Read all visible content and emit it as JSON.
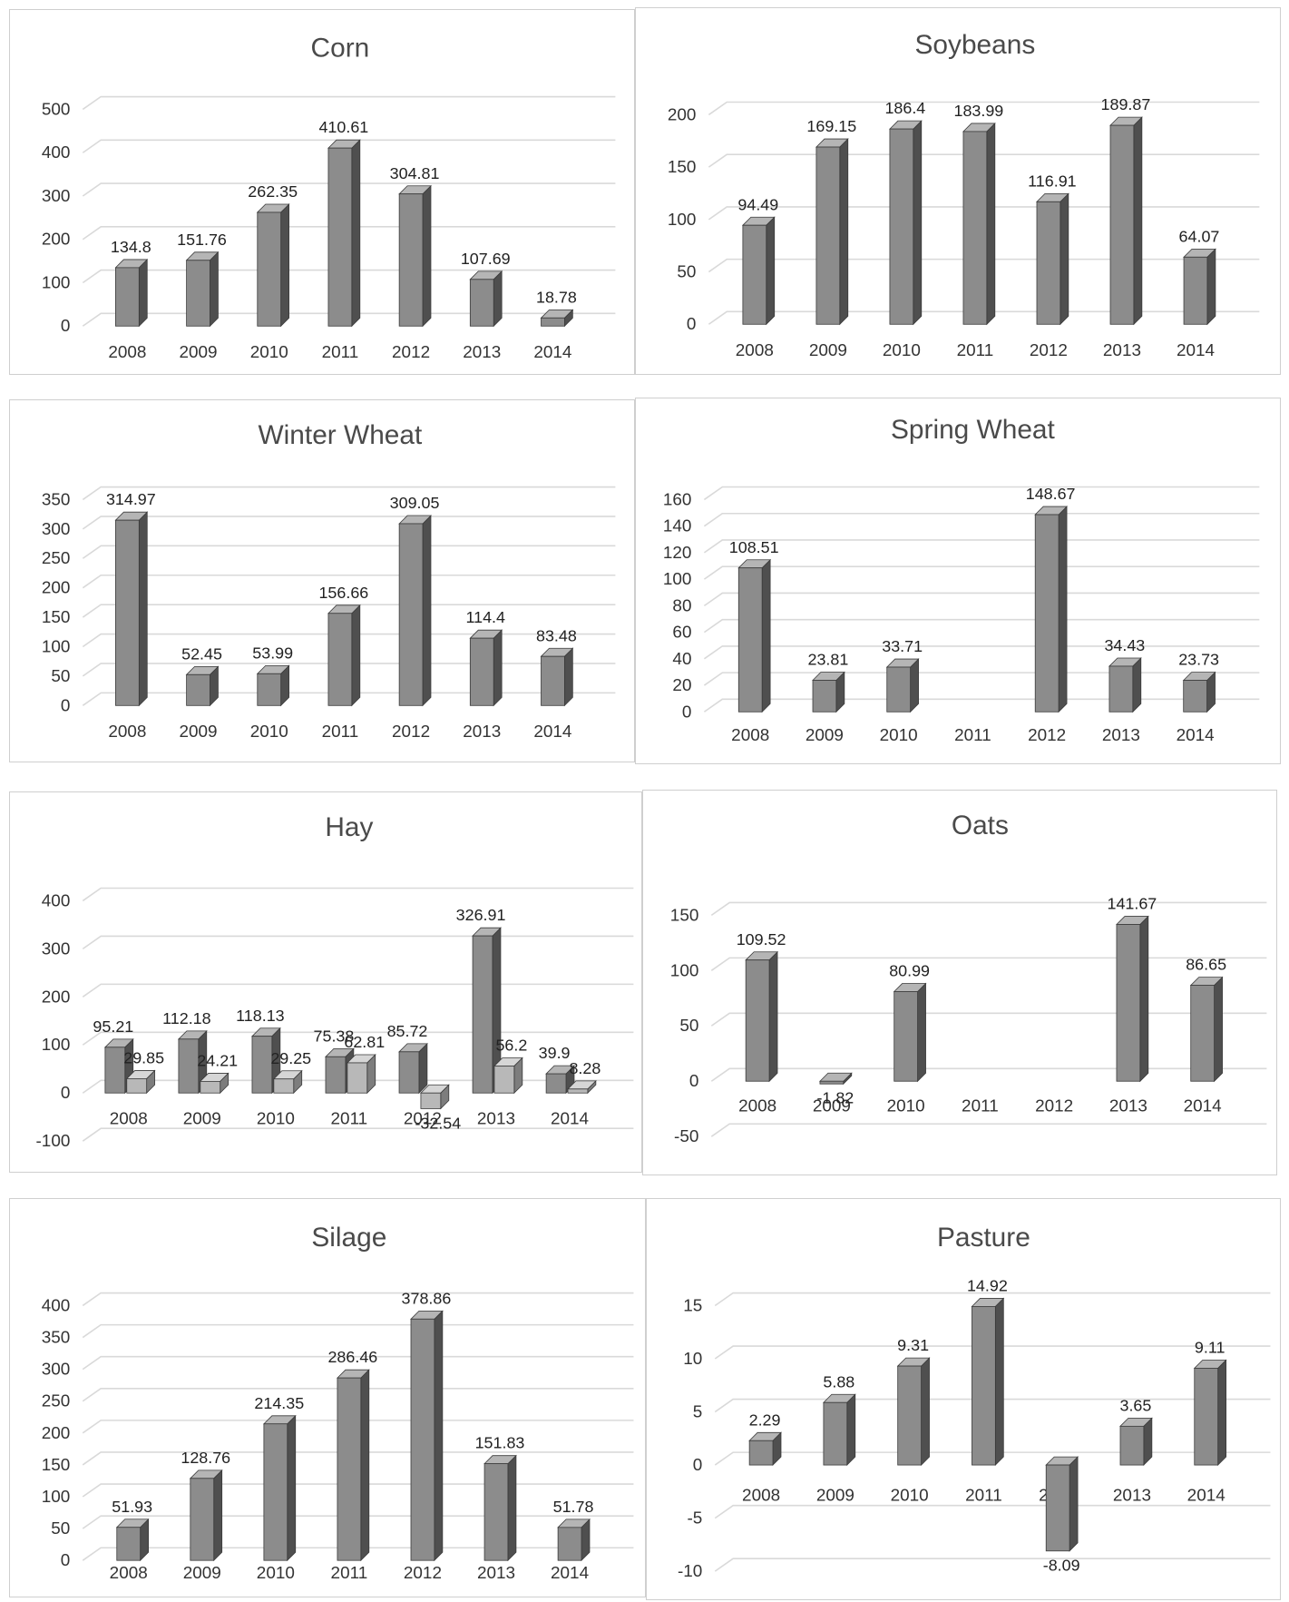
{
  "colors": {
    "bar_front": "#8c8c8c",
    "bar_side": "#4f4f4f",
    "bar_top": "#b5b5b5",
    "bar2_front": "#b8b8b8",
    "bar2_side": "#7d7d7d",
    "bar2_top": "#d6d6d6",
    "grid": "#d9d9d9",
    "text": "#333333"
  },
  "chart_data": [
    {
      "type": "bar",
      "title": "Corn",
      "categories": [
        "2008",
        "2009",
        "2010",
        "2011",
        "2012",
        "2013",
        "2014"
      ],
      "series": [
        {
          "values": [
            134.8,
            151.76,
            262.35,
            410.61,
            304.81,
            107.69,
            18.78
          ],
          "labels": [
            "134.8",
            "151.76",
            "262.35",
            "410.61",
            "304.81",
            "107.69",
            "18.78"
          ]
        }
      ],
      "yticks": [
        "0",
        "100",
        "200",
        "300",
        "400",
        "500"
      ],
      "ylim": [
        0,
        500
      ],
      "grid": true
    },
    {
      "type": "bar",
      "title": "Soybeans",
      "categories": [
        "2008",
        "2009",
        "2010",
        "2011",
        "2012",
        "2013",
        "2014"
      ],
      "series": [
        {
          "values": [
            94.49,
            169.15,
            186.4,
            183.99,
            116.91,
            189.87,
            64.07
          ],
          "labels": [
            "94.49",
            "169.15",
            "186.4",
            "183.99",
            "116.91",
            "189.87",
            "64.07"
          ]
        }
      ],
      "yticks": [
        "0",
        "50",
        "100",
        "150",
        "200"
      ],
      "ylim": [
        0,
        200
      ],
      "grid": true
    },
    {
      "type": "bar",
      "title": "Winter Wheat",
      "categories": [
        "2008",
        "2009",
        "2010",
        "2011",
        "2012",
        "2013",
        "2014"
      ],
      "series": [
        {
          "values": [
            314.97,
            52.45,
            53.99,
            156.66,
            309.05,
            114.4,
            83.48
          ],
          "labels": [
            "314.97",
            "52.45",
            "53.99",
            "156.66",
            "309.05",
            "114.4",
            "83.48"
          ]
        }
      ],
      "yticks": [
        "0",
        "50",
        "100",
        "150",
        "200",
        "250",
        "300",
        "350"
      ],
      "ylim": [
        0,
        350
      ],
      "grid": true
    },
    {
      "type": "bar",
      "title": "Spring Wheat",
      "categories": [
        "2008",
        "2009",
        "2010",
        "2011",
        "2012",
        "2013",
        "2014"
      ],
      "series": [
        {
          "values": [
            108.51,
            23.81,
            33.71,
            null,
            148.67,
            34.43,
            23.73
          ],
          "labels": [
            "108.51",
            "23.81",
            "33.71",
            "",
            "148.67",
            "34.43",
            "23.73"
          ]
        }
      ],
      "yticks": [
        "0",
        "20",
        "40",
        "60",
        "80",
        "100",
        "120",
        "140",
        "160"
      ],
      "ylim": [
        0,
        160
      ],
      "grid": true
    },
    {
      "type": "bar",
      "title": "Hay",
      "categories": [
        "2008",
        "2009",
        "2010",
        "2011",
        "2012",
        "2013",
        "2014"
      ],
      "series": [
        {
          "values": [
            95.21,
            112.18,
            118.13,
            75.38,
            85.72,
            326.91,
            39.9
          ],
          "labels": [
            "95.21",
            "112.18",
            "118.13",
            "75.38",
            "85.72",
            "326.91",
            "39.9"
          ]
        },
        {
          "values": [
            29.85,
            24.21,
            29.25,
            62.81,
            -32.54,
            56.2,
            8.28
          ],
          "labels": [
            "29.85",
            "24.21",
            "29.25",
            "62.81",
            "-32.54",
            "56.2",
            "8.28"
          ]
        }
      ],
      "yticks": [
        "-100",
        "0",
        "100",
        "200",
        "300",
        "400"
      ],
      "ylim": [
        -100,
        400
      ],
      "grid": true
    },
    {
      "type": "bar",
      "title": "Oats",
      "categories": [
        "2008",
        "2009",
        "2010",
        "2011",
        "2012",
        "2013",
        "2014"
      ],
      "series": [
        {
          "values": [
            109.52,
            -1.82,
            80.99,
            null,
            null,
            141.67,
            86.65
          ],
          "labels": [
            "109.52",
            "-1.82",
            "80.99",
            "",
            "",
            "141.67",
            "86.65"
          ]
        }
      ],
      "yticks": [
        "-50",
        "0",
        "50",
        "100",
        "150"
      ],
      "ylim": [
        -50,
        150
      ],
      "grid": true
    },
    {
      "type": "bar",
      "title": "Silage",
      "categories": [
        "2008",
        "2009",
        "2010",
        "2011",
        "2012",
        "2013",
        "2014"
      ],
      "series": [
        {
          "values": [
            51.93,
            128.76,
            214.35,
            286.46,
            378.86,
            151.83,
            51.78
          ],
          "labels": [
            "51.93",
            "128.76",
            "214.35",
            "286.46",
            "378.86",
            "151.83",
            "51.78"
          ]
        }
      ],
      "yticks": [
        "0",
        "50",
        "100",
        "150",
        "200",
        "250",
        "300",
        "350",
        "400"
      ],
      "ylim": [
        0,
        400
      ],
      "grid": true
    },
    {
      "type": "bar",
      "title": "Pasture",
      "categories": [
        "2008",
        "2009",
        "2010",
        "2011",
        "2012",
        "2013",
        "2014"
      ],
      "series": [
        {
          "values": [
            2.29,
            5.88,
            9.31,
            14.92,
            -8.09,
            3.65,
            9.11
          ],
          "labels": [
            "2.29",
            "5.88",
            "9.31",
            "14.92",
            "-8.09",
            "3.65",
            "9.11"
          ]
        }
      ],
      "yticks": [
        "-10",
        "-5",
        "0",
        "5",
        "10",
        "15"
      ],
      "ylim": [
        -10,
        15
      ],
      "grid": true
    }
  ]
}
